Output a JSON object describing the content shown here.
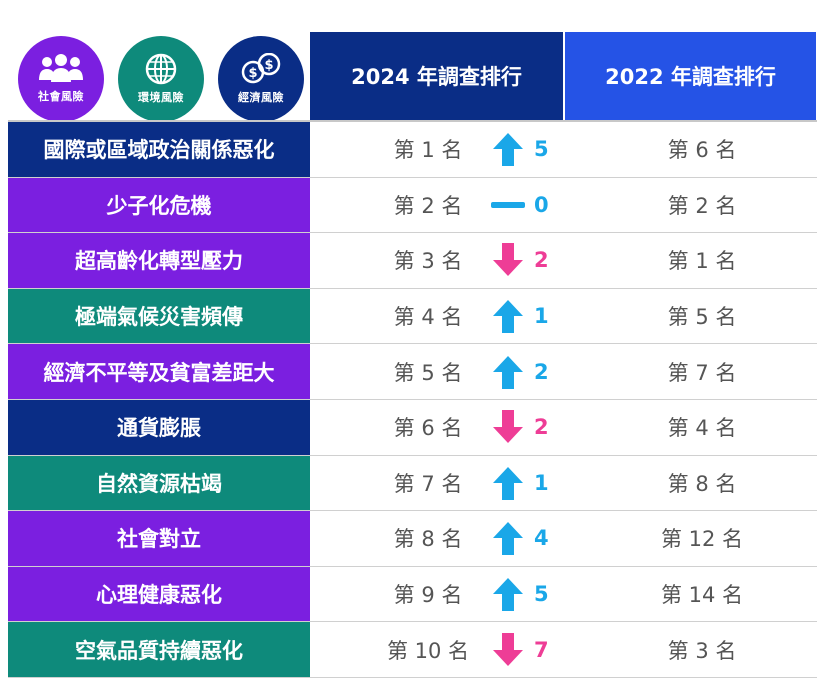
{
  "colors": {
    "social": "#7b1fe0",
    "environment": "#0e8a7b",
    "economic": "#0a2d86",
    "header_2024": "#0a2d86",
    "header_2022": "#2553e6",
    "up": "#1aa7e8",
    "down": "#ee3d96",
    "same": "#1aa7e8"
  },
  "legend": [
    {
      "label": "社會風險",
      "icon": "people-icon",
      "category": "social"
    },
    {
      "label": "環境風險",
      "icon": "globe-icon",
      "category": "environment"
    },
    {
      "label": "經濟風險",
      "icon": "coins-icon",
      "category": "economic"
    }
  ],
  "headers": {
    "col_2024": "2024 年調查排行",
    "col_2022": "2022 年調查排行"
  },
  "rows": [
    {
      "risk": "國際或區域政治關係惡化",
      "category": "economic",
      "rank_2024": "第 1 名",
      "trend": "up",
      "change": "5",
      "rank_2022": "第 6 名"
    },
    {
      "risk": "少子化危機",
      "category": "social",
      "rank_2024": "第 2 名",
      "trend": "same",
      "change": "0",
      "rank_2022": "第 2 名"
    },
    {
      "risk": "超高齡化轉型壓力",
      "category": "social",
      "rank_2024": "第 3 名",
      "trend": "down",
      "change": "2",
      "rank_2022": "第 1 名"
    },
    {
      "risk": "極端氣候災害頻傳",
      "category": "environment",
      "rank_2024": "第 4 名",
      "trend": "up",
      "change": "1",
      "rank_2022": "第 5 名"
    },
    {
      "risk": "經濟不平等及貧富差距大",
      "category": "social",
      "rank_2024": "第 5 名",
      "trend": "up",
      "change": "2",
      "rank_2022": "第 7 名"
    },
    {
      "risk": "通貨膨脹",
      "category": "economic",
      "rank_2024": "第 6 名",
      "trend": "down",
      "change": "2",
      "rank_2022": "第 4 名"
    },
    {
      "risk": "自然資源枯竭",
      "category": "environment",
      "rank_2024": "第 7 名",
      "trend": "up",
      "change": "1",
      "rank_2022": "第 8 名"
    },
    {
      "risk": "社會對立",
      "category": "social",
      "rank_2024": "第 8 名",
      "trend": "up",
      "change": "4",
      "rank_2022": "第 12 名"
    },
    {
      "risk": "心理健康惡化",
      "category": "social",
      "rank_2024": "第 9 名",
      "trend": "up",
      "change": "5",
      "rank_2022": "第 14 名"
    },
    {
      "risk": "空氣品質持續惡化",
      "category": "environment",
      "rank_2024": "第 10 名",
      "trend": "down",
      "change": "7",
      "rank_2022": "第 3 名"
    }
  ]
}
